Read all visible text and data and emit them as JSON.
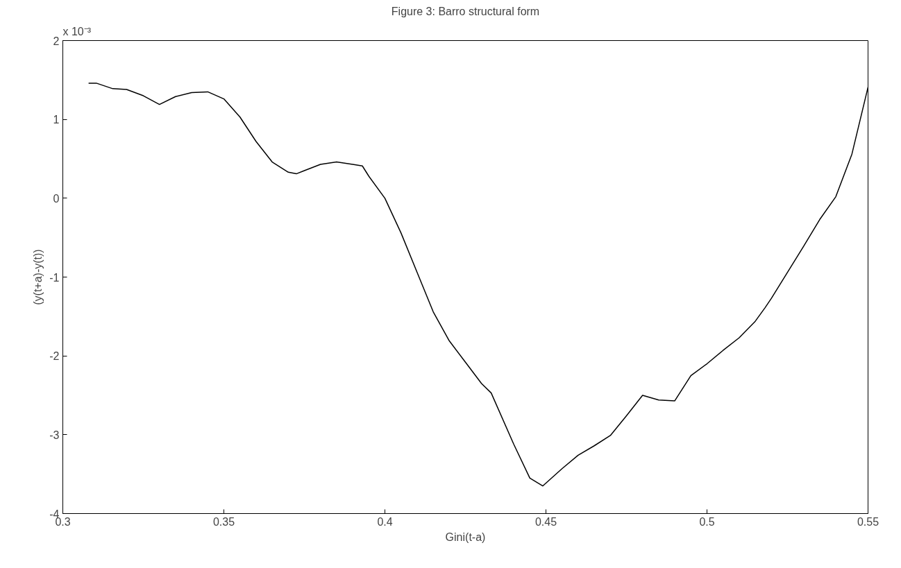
{
  "chart_data": {
    "type": "line",
    "title": "Figure 3: Barro structural form",
    "xlabel": "Gini(t-a)",
    "ylabel": "(y(t+a)-y(t))",
    "annotations": [
      "x 10⁻³"
    ],
    "x": [
      0.308,
      0.3104,
      0.3155,
      0.3198,
      0.325,
      0.33,
      0.335,
      0.34,
      0.345,
      0.35,
      0.355,
      0.36,
      0.365,
      0.37,
      0.3725,
      0.375,
      0.38,
      0.385,
      0.39,
      0.393,
      0.395,
      0.4,
      0.405,
      0.41,
      0.415,
      0.42,
      0.425,
      0.43,
      0.433,
      0.44,
      0.445,
      0.449,
      0.455,
      0.46,
      0.465,
      0.47,
      0.475,
      0.48,
      0.485,
      0.49,
      0.495,
      0.5,
      0.505,
      0.51,
      0.515,
      0.518,
      0.52,
      0.525,
      0.53,
      0.535,
      0.54,
      0.545,
      0.55
    ],
    "series": [
      {
        "color": "#000000",
        "values": [
          1.46,
          1.46,
          1.39,
          1.38,
          1.3,
          1.19,
          1.29,
          1.34,
          1.35,
          1.26,
          1.03,
          0.72,
          0.46,
          0.33,
          0.31,
          0.35,
          0.43,
          0.46,
          0.43,
          0.41,
          0.28,
          0.0,
          -0.44,
          -0.94,
          -1.44,
          -1.81,
          -2.08,
          -2.35,
          -2.47,
          -3.12,
          -3.55,
          -3.65,
          -3.43,
          -3.26,
          -3.14,
          -3.01,
          -2.76,
          -2.5,
          -2.56,
          -2.57,
          -2.25,
          -2.1,
          -1.93,
          -1.77,
          -1.56,
          -1.39,
          -1.27,
          -0.94,
          -0.61,
          -0.27,
          0.02,
          0.56,
          1.41
        ]
      }
    ],
    "xlim": [
      0.3,
      0.55
    ],
    "ylim": [
      -4,
      2
    ],
    "xticks": [
      0.3,
      0.35,
      0.4,
      0.45,
      0.5,
      0.55
    ],
    "yticks": [
      -4,
      -3,
      -2,
      -1,
      0,
      1,
      2
    ],
    "grid": false,
    "marker": "none",
    "line_style": "solid"
  }
}
